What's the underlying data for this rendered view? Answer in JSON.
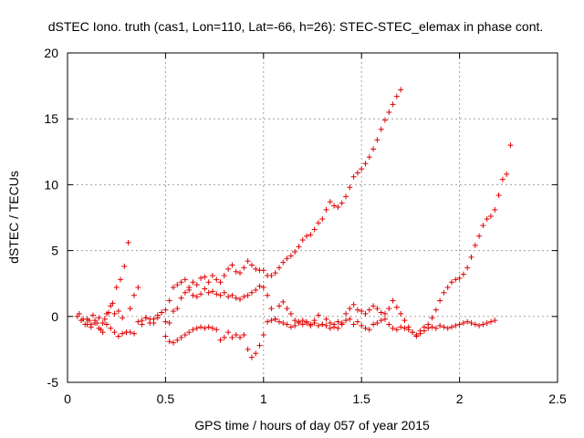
{
  "chart_data": {
    "type": "scatter",
    "title": "dSTEC Iono. truth (cas1, Lon=110, Lat=-66, h=26): STEC-STEC_elemax in phase cont.",
    "xlabel": "GPS time / hours of day 057 of year 2015",
    "ylabel": "dSTEC  / TECUs",
    "xlim": [
      0,
      2.5
    ],
    "ylim": [
      -5,
      20
    ],
    "x_ticks": [
      0,
      0.5,
      1,
      1.5,
      2,
      2.5
    ],
    "x_tick_labels": [
      "0",
      "0.5",
      "1",
      "1.5",
      "2",
      "2.5"
    ],
    "y_ticks": [
      -5,
      0,
      5,
      10,
      15,
      20
    ],
    "y_tick_labels": [
      "-5",
      "0",
      "5",
      "10",
      "15",
      "20"
    ],
    "grid": true,
    "marker": "plus",
    "color": "#e00000",
    "series": [
      {
        "x": [
          0.05,
          0.07,
          0.09,
          0.11,
          0.13,
          0.15,
          0.17,
          0.19,
          0.21,
          0.23,
          0.25,
          0.27,
          0.29,
          0.31
        ],
        "y": [
          0,
          -0.3,
          -0.6,
          -0.3,
          0.1,
          -0.5,
          -1.0,
          -0.2,
          0.3,
          1.0,
          2.2,
          2.8,
          3.8,
          5.6
        ]
      },
      {
        "x": [
          0.06,
          0.08,
          0.1,
          0.12,
          0.14,
          0.16,
          0.18,
          0.2,
          0.22,
          0.24,
          0.26,
          0.28,
          0.3,
          0.32,
          0.34,
          0.36,
          0.38,
          0.4,
          0.42,
          0.44,
          0.46,
          0.48,
          0.5,
          0.52,
          0.54,
          0.56,
          0.58,
          0.6,
          0.62,
          0.64,
          0.66,
          0.68,
          0.7,
          0.72,
          0.74,
          0.76,
          0.78,
          0.8,
          0.82,
          0.84,
          0.86,
          0.88,
          0.9,
          0.92,
          0.94,
          0.96,
          0.98,
          1.0,
          1.02,
          1.04,
          1.06,
          1.08,
          1.1,
          1.12,
          1.14,
          1.16,
          1.18,
          1.2,
          1.22,
          1.24,
          1.26,
          1.28,
          1.3,
          1.32,
          1.34,
          1.36,
          1.38,
          1.4,
          1.42,
          1.44,
          1.46,
          1.48,
          1.5,
          1.52,
          1.54,
          1.56,
          1.58,
          1.6,
          1.62,
          1.64,
          1.66,
          1.68,
          1.7
        ],
        "y": [
          0.2,
          -0.2,
          -0.6,
          -0.8,
          -0.5,
          -0.9,
          -1.2,
          -0.6,
          -0.9,
          -1.2,
          -1.5,
          -1.3,
          -1.2,
          -1.2,
          -1.3,
          -0.4,
          -0.6,
          -0.1,
          -0.2,
          -0.5,
          -0.1,
          0.3,
          0.5,
          1.2,
          2.2,
          2.4,
          2.6,
          2.8,
          2.2,
          2.6,
          2.4,
          2.9,
          3.0,
          2.6,
          3.1,
          2.8,
          2.6,
          3.1,
          3.6,
          3.9,
          3.4,
          3.3,
          3.7,
          4.2,
          3.9,
          3.6,
          3.5,
          3.5,
          3.1,
          3.1,
          3.3,
          3.7,
          4.1,
          4.4,
          4.6,
          4.9,
          5.3,
          5.8,
          6.1,
          6.2,
          6.6,
          7.1,
          7.4,
          8.1,
          8.7,
          8.4,
          8.3,
          8.6,
          9.1,
          9.8,
          10.6,
          10.9,
          11.2,
          11.6,
          12.1,
          12.7,
          13.4,
          14.2,
          14.9,
          15.5,
          16.1,
          16.7,
          17.2
        ]
      },
      {
        "x": [
          0.1,
          0.12,
          0.14,
          0.16,
          0.18,
          0.2,
          0.22,
          0.24,
          0.26,
          0.28,
          0.3,
          0.32,
          0.34,
          0.36,
          0.38,
          0.4,
          0.42,
          0.44,
          0.46,
          0.48,
          0.5,
          0.52,
          0.54,
          0.56,
          0.58,
          0.6,
          0.62,
          0.64,
          0.66,
          0.68,
          0.7,
          0.72,
          0.74,
          0.76,
          0.78,
          0.8,
          0.82,
          0.84,
          0.86,
          0.88,
          0.9,
          0.92,
          0.94,
          0.96,
          0.98,
          1.0,
          1.02,
          1.04,
          1.06,
          1.08,
          1.1,
          1.12,
          1.14,
          1.16,
          1.18,
          1.2,
          1.22,
          1.24,
          1.26,
          1.28,
          1.3,
          1.32,
          1.34,
          1.36,
          1.38,
          1.4,
          1.42,
          1.44,
          1.46,
          1.48,
          1.5,
          1.52,
          1.54,
          1.56,
          1.58,
          1.6,
          1.62,
          1.64,
          1.66,
          1.68,
          1.7,
          1.72,
          1.74,
          1.76,
          1.78,
          1.8,
          1.82,
          1.84,
          1.86,
          1.88,
          1.9,
          1.92,
          1.94,
          1.96,
          1.98,
          2.0,
          2.02,
          2.04,
          2.06,
          2.08,
          2.1,
          2.12,
          2.14,
          2.16,
          2.18,
          2.2,
          2.22,
          2.24,
          2.26
        ],
        "y": [
          -0.2,
          -0.6,
          -0.3,
          -0.1,
          -0.5,
          0.2,
          0.8,
          0.2,
          0.4,
          -0.1,
          -1.2,
          0.6,
          1.6,
          2.2,
          -0.3,
          -0.1,
          -0.5,
          -0.2,
          0.1,
          0.3,
          -0.4,
          -0.5,
          0.4,
          0.6,
          1.4,
          1.8,
          2.0,
          1.6,
          1.5,
          1.7,
          2.1,
          1.8,
          1.9,
          1.7,
          1.6,
          1.8,
          1.5,
          1.6,
          1.4,
          1.3,
          1.5,
          1.6,
          1.8,
          2.0,
          2.3,
          2.2,
          1.6,
          0.6,
          -0.2,
          0.8,
          1.1,
          0.6,
          0.2,
          -0.3,
          -0.5,
          -0.6,
          -0.4,
          -0.7,
          -0.3,
          0.1,
          -0.6,
          -0.2,
          -0.5,
          -0.6,
          -0.4,
          -0.5,
          -0.3,
          -0.2,
          -0.6,
          -0.4,
          -0.7,
          -0.9,
          -1.0,
          -0.6,
          -0.5,
          -0.3,
          0.2,
          0.6,
          1.2,
          0.7,
          0.2,
          -0.3,
          -0.8,
          -1.2,
          -1.5,
          -1.1,
          -0.8,
          -0.6,
          -0.1,
          0.5,
          1.2,
          1.8,
          2.2,
          2.6,
          2.8,
          2.9,
          3.2,
          3.7,
          4.5,
          5.4,
          6.1,
          6.9,
          7.4,
          7.6,
          8.1,
          9.2,
          10.4,
          10.8,
          13.0
        ]
      },
      {
        "x": [
          0.5,
          0.52,
          0.54,
          0.56,
          0.58,
          0.6,
          0.62,
          0.64,
          0.66,
          0.68,
          0.7,
          0.72,
          0.74,
          0.76,
          0.78,
          0.8,
          0.82,
          0.84,
          0.86,
          0.88,
          0.9,
          0.92,
          0.94,
          0.96,
          0.98,
          1.0,
          1.02,
          1.04,
          1.06,
          1.08,
          1.1,
          1.12,
          1.14,
          1.16,
          1.18,
          1.2,
          1.22,
          1.24,
          1.26,
          1.28,
          1.3,
          1.32,
          1.34,
          1.36,
          1.38,
          1.4,
          1.42,
          1.44,
          1.46,
          1.48,
          1.5,
          1.52,
          1.54,
          1.56,
          1.58,
          1.6,
          1.62,
          1.64,
          1.66,
          1.68,
          1.7,
          1.72,
          1.74,
          1.76,
          1.78,
          1.8,
          1.82,
          1.84,
          1.86,
          1.88,
          1.9,
          1.92,
          1.94,
          1.96,
          1.98,
          2.0,
          2.02,
          2.04,
          2.06,
          2.08,
          2.1,
          2.12,
          2.14,
          2.16,
          2.18
        ],
        "y": [
          -1.5,
          -1.9,
          -2.0,
          -1.8,
          -1.6,
          -1.4,
          -1.2,
          -1.0,
          -0.9,
          -0.8,
          -0.9,
          -0.8,
          -0.9,
          -1.0,
          -1.8,
          -1.6,
          -1.2,
          -1.6,
          -1.4,
          -1.6,
          -1.4,
          -2.5,
          -3.1,
          -2.8,
          -2.2,
          -1.4,
          -0.4,
          -0.3,
          -0.2,
          -0.4,
          -0.5,
          -0.6,
          -0.8,
          -0.7,
          -0.4,
          -0.3,
          -0.5,
          -0.6,
          -0.5,
          -0.7,
          -0.6,
          -0.7,
          -0.9,
          -0.8,
          -0.9,
          -0.6,
          0.2,
          0.6,
          0.9,
          0.5,
          0.4,
          0.2,
          0.5,
          0.8,
          0.6,
          0.3,
          -0.2,
          -0.6,
          -0.9,
          -1.0,
          -0.8,
          -0.9,
          -1.0,
          -1.2,
          -1.4,
          -1.3,
          -1.1,
          -0.9,
          -0.8,
          -0.9,
          -0.7,
          -0.8,
          -0.9,
          -0.8,
          -0.7,
          -0.6,
          -0.5,
          -0.4,
          -0.5,
          -0.6,
          -0.7,
          -0.6,
          -0.5,
          -0.4,
          -0.3
        ]
      }
    ]
  }
}
